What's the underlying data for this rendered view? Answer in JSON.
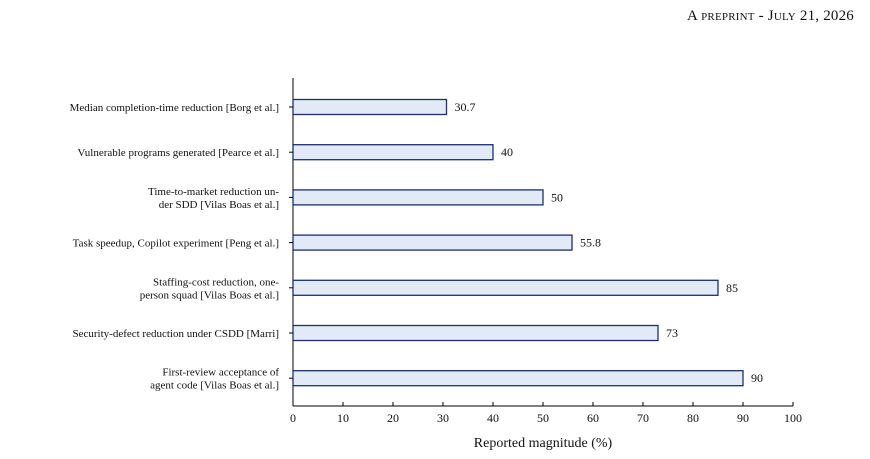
{
  "header": {
    "initial_a": "A",
    "preprint": "preprint",
    "sep": " - ",
    "initial_j": "J",
    "uly": "uly",
    "date_rest": "21, 2026"
  },
  "chart_data": {
    "type": "bar",
    "orientation": "horizontal",
    "categories": [
      [
        "Median completion-time reduction [Borg et al.]"
      ],
      [
        "Vulnerable programs generated [Pearce et al.]"
      ],
      [
        "Time-to-market reduction un-",
        "der SDD [Vilas Boas et al.]"
      ],
      [
        "Task speedup, Copilot experiment [Peng et al.]"
      ],
      [
        "Staffing-cost reduction, one-",
        "person squad [Vilas Boas et al.]"
      ],
      [
        "Security-defect reduction under CSDD [Marri]"
      ],
      [
        "First-review acceptance of",
        "agent code [Vilas Boas et al.]"
      ]
    ],
    "values": [
      30.7,
      40,
      50,
      55.8,
      85,
      73,
      90
    ],
    "value_labels": [
      "30.7",
      "40",
      "50",
      "55.8",
      "85",
      "73",
      "90"
    ],
    "xlim": [
      0,
      100
    ],
    "xticks": [
      0,
      10,
      20,
      30,
      40,
      50,
      60,
      70,
      80,
      90,
      100
    ],
    "xlabel": "Reported magnitude (%)",
    "ylabel": "",
    "title": "",
    "grid": false,
    "colors": {
      "bar_fill": "#e3eaf7",
      "bar_stroke": "#1d2f6f",
      "axis": "#000000"
    }
  }
}
